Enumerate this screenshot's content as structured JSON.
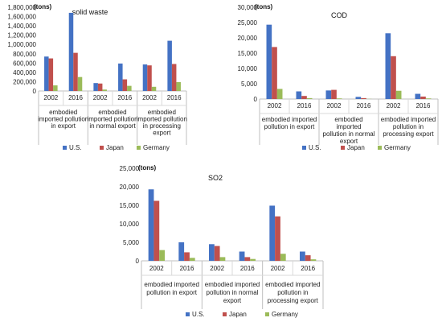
{
  "chart_data": [
    {
      "type": "bar",
      "title": "solid waste",
      "unit": "(tons)",
      "ylim": [
        0,
        1800000
      ],
      "yticks": [
        "0",
        "200,000",
        "400,000",
        "600,000",
        "800,000",
        "1,000,000",
        "1,200,000",
        "1,400,000",
        "1,600,000",
        "1,800,000"
      ],
      "categories": [
        "2002",
        "2016",
        "2002",
        "2016",
        "2002",
        "2016"
      ],
      "groups": [
        {
          "lines": [
            "embodied",
            "imported pollution",
            "in export"
          ]
        },
        {
          "lines": [
            "embodied",
            "imported pollution",
            "in normal export"
          ]
        },
        {
          "lines": [
            "embodied",
            "imported pollution",
            "in processing",
            "export"
          ]
        }
      ],
      "series": [
        {
          "name": "U.S.",
          "color": "#4472C4",
          "values": [
            740000,
            1680000,
            170000,
            590000,
            570000,
            1080000
          ]
        },
        {
          "name": "Japan",
          "color": "#C0504D",
          "values": [
            700000,
            820000,
            160000,
            250000,
            550000,
            580000
          ]
        },
        {
          "name": "Germany",
          "color": "#9BBB59",
          "values": [
            120000,
            300000,
            30000,
            110000,
            90000,
            190000
          ]
        }
      ],
      "legend": "bottom",
      "grid": false
    },
    {
      "type": "bar",
      "title": "COD",
      "unit": "(tons)",
      "ylim": [
        0,
        30000
      ],
      "yticks": [
        "0",
        "5,000",
        "10,000",
        "15,000",
        "20,000",
        "25,000",
        "30,000"
      ],
      "categories": [
        "2002",
        "2016",
        "2002",
        "2016",
        "2002",
        "2016"
      ],
      "groups": [
        {
          "lines": [
            "embodied imported",
            "pollution in export"
          ]
        },
        {
          "lines": [
            "embodied",
            "imported",
            "pollution in normal",
            "export"
          ]
        },
        {
          "lines": [
            "embodied imported",
            "pollution in",
            "processing export"
          ]
        }
      ],
      "series": [
        {
          "name": "U.S.",
          "color": "#4472C4",
          "values": [
            24300,
            2500,
            2800,
            700,
            21500,
            1700
          ]
        },
        {
          "name": "Japan",
          "color": "#C0504D",
          "values": [
            17000,
            1000,
            3000,
            300,
            14000,
            800
          ]
        },
        {
          "name": "Germany",
          "color": "#9BBB59",
          "values": [
            3300,
            300,
            200,
            50,
            2700,
            200
          ]
        }
      ],
      "legend": "bottom",
      "grid": false
    },
    {
      "type": "bar",
      "title": "SO2",
      "unit": "(tons)",
      "ylim": [
        0,
        25000
      ],
      "yticks": [
        "0",
        "5,000",
        "10,000",
        "15,000",
        "20,000",
        "25,000"
      ],
      "categories": [
        "2002",
        "2016",
        "2002",
        "2016",
        "2002",
        "2016"
      ],
      "groups": [
        {
          "lines": [
            "embodied imported",
            "pollution in export"
          ]
        },
        {
          "lines": [
            "embodied imported",
            "pollution in normal",
            "export"
          ]
        },
        {
          "lines": [
            "embodied imported",
            "pollution in",
            "processing export"
          ]
        }
      ],
      "series": [
        {
          "name": "U.S.",
          "color": "#4472C4",
          "values": [
            19300,
            5000,
            4500,
            2500,
            14900,
            2500
          ]
        },
        {
          "name": "Japan",
          "color": "#C0504D",
          "values": [
            16200,
            2300,
            4000,
            1000,
            12000,
            1500
          ]
        },
        {
          "name": "Germany",
          "color": "#9BBB59",
          "values": [
            2900,
            800,
            1000,
            500,
            1900,
            400
          ]
        }
      ],
      "legend": "bottom",
      "grid": false
    }
  ]
}
